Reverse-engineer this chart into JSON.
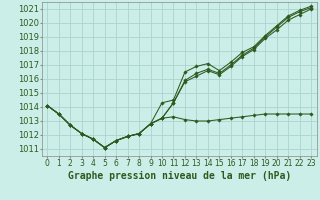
{
  "background_color": "#cceee8",
  "grid_color": "#aad4ce",
  "line_color": "#2d5a1e",
  "marker_color": "#2d5a1e",
  "xlabel": "Graphe pression niveau de la mer (hPa)",
  "xlabel_fontsize": 7.0,
  "ylabel_fontsize": 6.0,
  "xlim": [
    -0.5,
    23.5
  ],
  "ylim": [
    1010.5,
    1021.5
  ],
  "yticks": [
    1011,
    1012,
    1013,
    1014,
    1015,
    1016,
    1017,
    1018,
    1019,
    1020,
    1021
  ],
  "xticks": [
    0,
    1,
    2,
    3,
    4,
    5,
    6,
    7,
    8,
    9,
    10,
    11,
    12,
    13,
    14,
    15,
    16,
    17,
    18,
    19,
    20,
    21,
    22,
    23
  ],
  "series": [
    [
      1014.1,
      1013.5,
      1012.7,
      1012.1,
      1011.7,
      1011.1,
      1011.6,
      1011.9,
      1012.1,
      1012.8,
      1013.2,
      1013.3,
      1013.1,
      1013.0,
      1013.0,
      1013.1,
      1013.2,
      1013.3,
      1013.4,
      1013.5,
      1013.5,
      1013.5,
      1013.5,
      1013.5
    ],
    [
      1014.1,
      1013.5,
      1012.7,
      1012.1,
      1011.7,
      1011.1,
      1011.6,
      1011.9,
      1012.1,
      1012.8,
      1013.2,
      1014.3,
      1015.8,
      1016.2,
      1016.6,
      1016.3,
      1016.9,
      1017.6,
      1018.1,
      1018.9,
      1019.5,
      1020.2,
      1020.6,
      1021.0
    ],
    [
      1014.1,
      1013.5,
      1012.7,
      1012.1,
      1011.7,
      1011.1,
      1011.6,
      1011.9,
      1012.1,
      1012.8,
      1013.2,
      1014.3,
      1015.9,
      1016.4,
      1016.7,
      1016.4,
      1017.0,
      1017.7,
      1018.2,
      1019.0,
      1019.7,
      1020.4,
      1020.8,
      1021.1
    ],
    [
      1014.1,
      1013.5,
      1012.7,
      1012.1,
      1011.7,
      1011.1,
      1011.6,
      1011.9,
      1012.1,
      1012.8,
      1014.3,
      1014.5,
      1016.5,
      1016.9,
      1017.1,
      1016.6,
      1017.2,
      1017.9,
      1018.3,
      1019.1,
      1019.8,
      1020.5,
      1020.9,
      1021.2
    ]
  ]
}
